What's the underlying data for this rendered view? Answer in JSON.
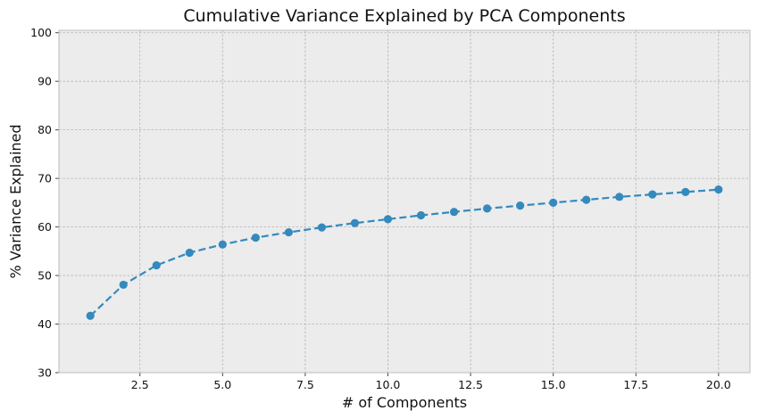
{
  "chart_data": {
    "type": "line",
    "title": "Cumulative Variance Explained by PCA Components",
    "xlabel": "# of Components",
    "ylabel": "% Variance Explained",
    "xlim": [
      0.05,
      20.95
    ],
    "ylim": [
      30,
      100.5
    ],
    "x_ticks": [
      2.5,
      5.0,
      7.5,
      10.0,
      12.5,
      15.0,
      17.5,
      20.0
    ],
    "x_tick_labels": [
      "2.5",
      "5.0",
      "7.5",
      "10.0",
      "12.5",
      "15.0",
      "17.5",
      "20.0"
    ],
    "y_ticks": [
      30,
      40,
      50,
      60,
      70,
      80,
      90,
      100
    ],
    "y_tick_labels": [
      "30",
      "40",
      "50",
      "60",
      "70",
      "80",
      "90",
      "100"
    ],
    "grid": true,
    "legend": "none",
    "series": [
      {
        "x": [
          1,
          2,
          3,
          4,
          5,
          6,
          7,
          8,
          9,
          10,
          11,
          12,
          13,
          14,
          15,
          16,
          17,
          18,
          19,
          20
        ],
        "values": [
          41.7,
          48.1,
          52.1,
          54.7,
          56.4,
          57.8,
          58.9,
          59.9,
          60.8,
          61.6,
          62.4,
          63.1,
          63.8,
          64.4,
          65.0,
          65.6,
          66.2,
          66.7,
          67.2,
          67.7
        ],
        "line_style": "dashed",
        "marker": "circle"
      }
    ],
    "colors": {
      "line": "#348abd",
      "plot_background": "#ececec",
      "grid": "#b2b2b2",
      "frame": "#bcbcbc"
    }
  }
}
